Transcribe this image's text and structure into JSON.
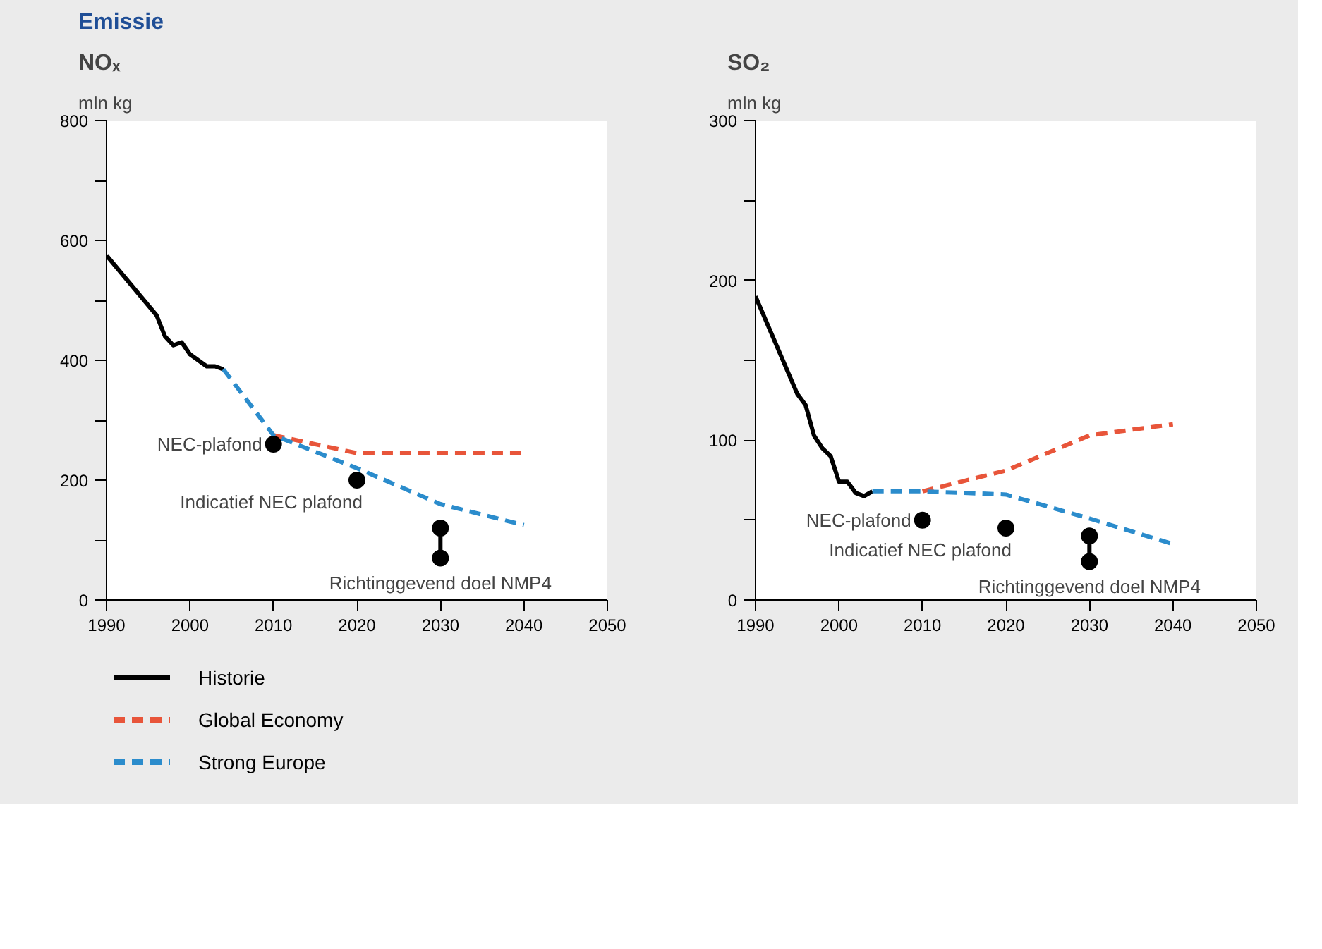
{
  "chart_data": [
    {
      "type": "line",
      "title": "Emissie",
      "subtitle": "NOₓ",
      "ylabel": "mln kg",
      "xlim": [
        1990,
        2050
      ],
      "xticks": [
        1990,
        2000,
        2010,
        2020,
        2030,
        2040,
        2050
      ],
      "ylim": [
        0,
        800
      ],
      "yticks": [
        0,
        {
          "value": 100,
          "label": null
        },
        200,
        {
          "value": 300,
          "label": null
        },
        400,
        {
          "value": 500,
          "label": null
        },
        600,
        {
          "value": 700,
          "label": null
        },
        800
      ],
      "grid": false,
      "legend": "bottom",
      "series": [
        {
          "name": "Historie",
          "color": "#000000",
          "line_style": "solid",
          "x": [
            1990,
            1996,
            1997,
            1998,
            1999,
            2000,
            2001,
            2002,
            2003,
            2004
          ],
          "values": [
            575,
            475,
            440,
            425,
            430,
            410,
            400,
            390,
            390,
            385
          ]
        },
        {
          "name": "Global Economy",
          "color": "#e8553a",
          "line_style": "dashed",
          "x": [
            2010,
            2020,
            2030,
            2040
          ],
          "values": [
            275,
            245,
            245,
            245
          ]
        },
        {
          "name": "Strong Europe",
          "color": "#2b8ccc",
          "line_style": "dashed",
          "x": [
            2004,
            2010,
            2020,
            2030,
            2040
          ],
          "values": [
            385,
            275,
            220,
            160,
            125
          ]
        },
        {
          "type": "scatter",
          "color": "#000000",
          "marker": "circle",
          "x": [
            2010,
            2020,
            2030,
            2030
          ],
          "values": [
            260,
            200,
            120,
            70
          ]
        },
        {
          "type": "line",
          "color": "#000000",
          "line_style": "solid",
          "x": [
            2030,
            2030
          ],
          "values": [
            120,
            70
          ]
        }
      ],
      "annotations": [
        {
          "text": "NEC-plafond",
          "x": 2010,
          "y": 260
        },
        {
          "text": "Indicatief NEC plafond",
          "x": 2020,
          "y": 200
        },
        {
          "text": "Richtinggevend doel NMP4",
          "x": 2030,
          "y": 70
        }
      ]
    },
    {
      "type": "line",
      "subtitle": "SO₂",
      "ylabel": "mln kg",
      "xlim": [
        1990,
        2050
      ],
      "xticks": [
        1990,
        2000,
        2010,
        2020,
        2030,
        2040,
        2050
      ],
      "ylim": [
        0,
        300
      ],
      "yticks": [
        0,
        {
          "value": 50,
          "label": null
        },
        100,
        {
          "value": 150,
          "label": null
        },
        200,
        {
          "value": 250,
          "label": null
        },
        300
      ],
      "grid": false,
      "series": [
        {
          "color": "#000000",
          "line_style": "solid",
          "x": [
            1990,
            1995,
            1996,
            1997,
            1998,
            1999,
            2000,
            2001,
            2002,
            2003,
            2004
          ],
          "values": [
            190,
            129,
            122,
            103,
            95,
            90,
            74,
            74,
            67,
            65,
            68
          ]
        },
        {
          "color": "#e8553a",
          "line_style": "dashed",
          "x": [
            2010,
            2020,
            2030,
            2040
          ],
          "values": [
            68,
            81,
            103,
            110
          ]
        },
        {
          "color": "#2b8ccc",
          "line_style": "dashed",
          "x": [
            2004,
            2010,
            2020,
            2030,
            2040
          ],
          "values": [
            68,
            68,
            66,
            51,
            35
          ]
        },
        {
          "type": "scatter",
          "color": "#000000",
          "marker": "circle",
          "x": [
            2010,
            2020,
            2030,
            2030
          ],
          "values": [
            50,
            45,
            40,
            24
          ]
        },
        {
          "type": "line",
          "color": "#000000",
          "line_style": "solid",
          "x": [
            2030,
            2030
          ],
          "values": [
            40,
            24
          ]
        }
      ],
      "annotations": [
        {
          "text": "NEC-plafond",
          "x": 2010,
          "y": 50
        },
        {
          "text": "Indicatief NEC plafond",
          "x": 2020,
          "y": 45
        },
        {
          "text": "Richtinggevend doel NMP4",
          "x": 2030,
          "y": 24
        }
      ]
    }
  ]
}
